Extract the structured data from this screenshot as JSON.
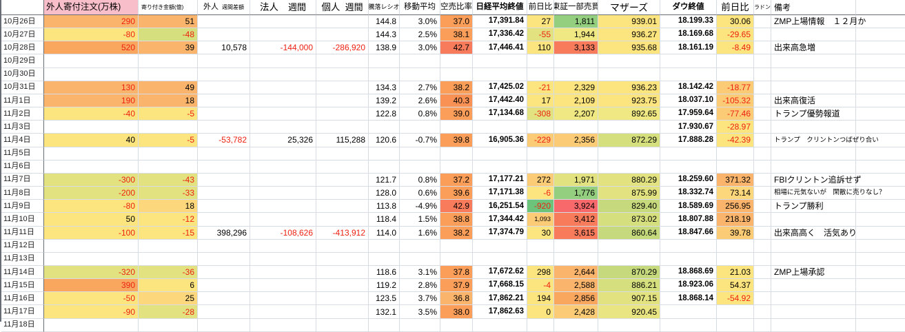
{
  "palette": {
    "pink": "#f8bfca",
    "y": "#fce47e",
    "yo": "#fcd77b",
    "po": "#fccb76",
    "o": "#fbb46b",
    "o2": "#f9a75f",
    "or1": "#fa9e5a",
    "or2": "#f99154",
    "ro": "#f87b5c",
    "red": "#f8696b",
    "pyg": "#f0e882",
    "yg": "#e2e380",
    "yg2": "#d5df7e",
    "yg3": "#c6da7d",
    "yg4": "#eae583",
    "g": "#93cf7e",
    "g2": "#6cc47b",
    "font_red": "#ee2112",
    "grid_line": "#d7dbe3",
    "heavy_line": "#676c75"
  },
  "header": {
    "cols": [
      {
        "id": "date",
        "label": ""
      },
      {
        "id": "foreign-opening-order",
        "label": "外人寄付注文(万株)",
        "bg": "pink"
      },
      {
        "id": "opening-amount",
        "label": "寄り付き金額(億)"
      },
      {
        "id": "foreign-weekly",
        "label": "外人",
        "sub": "週間差額"
      },
      {
        "id": "corporate-weekly",
        "label": "法人",
        "sub": "週間"
      },
      {
        "id": "individual-weekly",
        "label": "個人",
        "sub": "週間"
      },
      {
        "id": "advance-decline-ratio",
        "label": "騰落レシオ"
      },
      {
        "id": "moving-average",
        "label": "移動平均"
      },
      {
        "id": "short-sell-ratio",
        "label": "空売比率"
      },
      {
        "id": "nikkei-close",
        "label": "日経平均終値"
      },
      {
        "id": "nikkei-change",
        "label": "前日比"
      },
      {
        "id": "tse1-trading-value",
        "label": "東証一部売買"
      },
      {
        "id": "mothers-index",
        "label": "マザーズ"
      },
      {
        "id": "dow-close",
        "label": "ダウ終値"
      },
      {
        "id": "dow-change",
        "label": "前日比"
      },
      {
        "id": "radon",
        "label": "ラドン"
      },
      {
        "id": "remarks",
        "label": "備考"
      },
      {
        "id": "blank",
        "label": ""
      }
    ]
  },
  "rows": [
    {
      "date": "10月26日",
      "cells": [
        [
          "290",
          "o",
          "r"
        ],
        [
          "51",
          "o"
        ],
        null,
        null,
        null,
        [
          "144.8"
        ],
        [
          "3.0%"
        ],
        [
          "37.0",
          "or1"
        ],
        [
          "17,391.84"
        ],
        [
          "27",
          "y"
        ],
        [
          "1,811",
          "g"
        ],
        [
          "939.01",
          "y"
        ],
        [
          "18.199.33"
        ],
        [
          "30.06",
          "y"
        ],
        null,
        [
          "ZMP上場情報　１２月か"
        ]
      ]
    },
    {
      "date": "10月27日",
      "cells": [
        [
          "-80",
          "y",
          "r"
        ],
        [
          "-48",
          "yg2",
          "r"
        ],
        null,
        null,
        null,
        [
          "144.3"
        ],
        [
          "2.5%"
        ],
        [
          "38.1",
          "or1"
        ],
        [
          "17,336.42"
        ],
        [
          "-55",
          "yg",
          "r"
        ],
        [
          "1,944",
          "pyg"
        ],
        [
          "936.27",
          "y"
        ],
        [
          "18.169.68"
        ],
        [
          "-29.65",
          "y",
          "r"
        ],
        null,
        null
      ]
    },
    {
      "date": "10月28日",
      "cells": [
        [
          "520",
          "o2",
          "r"
        ],
        [
          "39",
          "o"
        ],
        [
          "10,578"
        ],
        [
          "-144,000",
          null,
          "r"
        ],
        [
          "-286,920",
          null,
          "r"
        ],
        [
          "138.9"
        ],
        [
          "3.0%"
        ],
        [
          "42.7",
          "ro"
        ],
        [
          "17,446.41"
        ],
        [
          "110",
          "y"
        ],
        [
          "3,133",
          "ro"
        ],
        [
          "935.68",
          "y"
        ],
        [
          "18.161.19"
        ],
        [
          "-8.49",
          "y",
          "r"
        ],
        null,
        [
          "出来高急増"
        ]
      ]
    },
    {
      "date": "10月29日",
      "cells": []
    },
    {
      "date": "10月30日",
      "cells": []
    },
    {
      "date": "10月31日",
      "cells": [
        [
          "130",
          "o",
          "r"
        ],
        [
          "49",
          "o"
        ],
        null,
        null,
        null,
        [
          "134.3"
        ],
        [
          "2.7%"
        ],
        [
          "38.2",
          "or1"
        ],
        [
          "17,425.02"
        ],
        [
          "-21",
          "y",
          "r"
        ],
        [
          "2,329",
          "y"
        ],
        [
          "936.23",
          "y"
        ],
        [
          "18.142.42"
        ],
        [
          "-18.77",
          "po",
          "r"
        ],
        null,
        null
      ]
    },
    {
      "date": "11月1日",
      "cells": [
        [
          "190",
          "o",
          "r"
        ],
        [
          "18",
          "o"
        ],
        null,
        null,
        null,
        [
          "139.2"
        ],
        [
          "2.6%"
        ],
        [
          "40.3",
          "or2"
        ],
        [
          "17,442.40"
        ],
        [
          "17",
          "y"
        ],
        [
          "2,109",
          "y"
        ],
        [
          "923.75",
          "y"
        ],
        [
          "18.037.10"
        ],
        [
          "-105.32",
          "po",
          "r"
        ],
        null,
        [
          "出来高復活"
        ]
      ]
    },
    {
      "date": "11月2日",
      "cells": [
        [
          "-40",
          "y",
          "r"
        ],
        [
          "-5",
          "y",
          "r"
        ],
        null,
        null,
        null,
        [
          "122.8"
        ],
        [
          "0.8%"
        ],
        [
          "39.0",
          "or1"
        ],
        [
          "17,134.68"
        ],
        [
          "-308",
          "yg",
          "r"
        ],
        [
          "2,207",
          "pyg"
        ],
        [
          "892.65",
          "pyg"
        ],
        [
          "17.959.64"
        ],
        [
          "-77.46",
          "po",
          "r"
        ],
        null,
        [
          "トランプ優勢報道"
        ]
      ]
    },
    {
      "date": "11月3日",
      "cells": [
        null,
        null,
        null,
        null,
        null,
        null,
        null,
        null,
        null,
        null,
        null,
        null,
        [
          "17.930.67"
        ],
        [
          "-28.97",
          "y",
          "r"
        ],
        null,
        null
      ]
    },
    {
      "date": "11月4日",
      "cells": [
        [
          "40",
          "y"
        ],
        [
          "-5",
          "y",
          "r"
        ],
        [
          "-53,782",
          null,
          "r"
        ],
        [
          "25,326"
        ],
        [
          "115,288"
        ],
        [
          "120.6"
        ],
        [
          "-0.7%"
        ],
        [
          "39.8",
          "or1"
        ],
        [
          "16,905.36"
        ],
        [
          "-229",
          "po",
          "r"
        ],
        [
          "2,356",
          "po"
        ],
        [
          "872.29",
          "yg2"
        ],
        [
          "17.888.28"
        ],
        [
          "-42.39",
          "y",
          "r"
        ],
        null,
        [
          "トランプ　クリントンつばぜり合い",
          null,
          null,
          "s"
        ]
      ]
    },
    {
      "date": "11月5日",
      "cells": []
    },
    {
      "date": "11月6日",
      "cells": []
    },
    {
      "date": "11月7日",
      "cells": [
        [
          "-300",
          "yg",
          "r"
        ],
        [
          "-43",
          "yg",
          "r"
        ],
        null,
        null,
        null,
        [
          "121.7"
        ],
        [
          "0.8%"
        ],
        [
          "37.2",
          "or1"
        ],
        [
          "17,177.21"
        ],
        [
          "272",
          "po"
        ],
        [
          "1,971",
          "yg"
        ],
        [
          "880.29",
          "yg"
        ],
        [
          "18.259.60"
        ],
        [
          "371.32",
          "o"
        ],
        null,
        [
          "FBIクリントン追訴せず"
        ]
      ]
    },
    {
      "date": "11月8日",
      "cells": [
        [
          "-200",
          "yg",
          "r"
        ],
        [
          "-33",
          "yg",
          "r"
        ],
        null,
        null,
        null,
        [
          "128.0"
        ],
        [
          "0.6%"
        ],
        [
          "39.6",
          "or1"
        ],
        [
          "17,171.38"
        ],
        [
          "-6",
          "y",
          "r"
        ],
        [
          "1,776",
          "g"
        ],
        [
          "875.99",
          "yg"
        ],
        [
          "18.332.74"
        ],
        [
          "73.14",
          "yo"
        ],
        null,
        [
          "相場に元気ないが　閑散に売りなし？",
          null,
          null,
          "s"
        ]
      ]
    },
    {
      "date": "11月9日",
      "cells": [
        [
          "-80",
          "y",
          "r"
        ],
        [
          "18",
          "yo"
        ],
        null,
        null,
        null,
        [
          "113.8"
        ],
        [
          "-4.9%"
        ],
        [
          "42.9",
          "ro"
        ],
        [
          "16,251.54"
        ],
        [
          "-920",
          "g2",
          "r"
        ],
        [
          "3,924",
          "red"
        ],
        [
          "829.40",
          "yg3"
        ],
        [
          "18.589.69"
        ],
        [
          "256.95",
          "o"
        ],
        null,
        [
          "トランプ勝利"
        ]
      ]
    },
    {
      "date": "11月10日",
      "cells": [
        [
          "50",
          "y"
        ],
        [
          "-12",
          "y",
          "r"
        ],
        null,
        null,
        null,
        [
          "118.4"
        ],
        [
          "1.5%"
        ],
        [
          "38.8",
          "or1"
        ],
        [
          "17,344.42"
        ],
        [
          "1,093",
          "po",
          null,
          "s"
        ],
        [
          "3,412",
          "ro"
        ],
        [
          "873.02",
          "yg2"
        ],
        [
          "18.807.88"
        ],
        [
          "218.19",
          "o"
        ],
        null,
        null
      ]
    },
    {
      "date": "11月11日",
      "cells": [
        [
          "-100",
          "y",
          "r"
        ],
        [
          "-15",
          "y",
          "r"
        ],
        [
          "398,296"
        ],
        [
          "-108,626",
          null,
          "r"
        ],
        [
          "-413,912",
          null,
          "r"
        ],
        [
          "114.0"
        ],
        [
          "1.6%"
        ],
        [
          "38.2",
          "or1"
        ],
        [
          "17,374.79"
        ],
        [
          "30",
          "y"
        ],
        [
          "3,615",
          "ro"
        ],
        [
          "860.64",
          "yg3"
        ],
        [
          "18.847.66"
        ],
        [
          "39.78",
          "po"
        ],
        null,
        [
          "出来高高く　活気あり"
        ]
      ]
    },
    {
      "date": "11月12日",
      "cells": []
    },
    {
      "date": "11月13日",
      "cells": []
    },
    {
      "date": "11月14日",
      "cells": [
        [
          "-320",
          "yg",
          "r"
        ],
        [
          "-36",
          "yg",
          "r"
        ],
        null,
        null,
        null,
        [
          "118.6"
        ],
        [
          "3.1%"
        ],
        [
          "37.8",
          "or1"
        ],
        [
          "17,672.62"
        ],
        [
          "298",
          "y"
        ],
        [
          "2,644",
          "o"
        ],
        [
          "870.29",
          "yg3"
        ],
        [
          "18.868.69"
        ],
        [
          "21.03",
          "y"
        ],
        null,
        [
          "ZMP上場承認"
        ]
      ]
    },
    {
      "date": "11月15日",
      "cells": [
        [
          "390",
          "o2",
          "r"
        ],
        [
          "6",
          "y"
        ],
        null,
        null,
        null,
        [
          "119.2"
        ],
        [
          "2.8%"
        ],
        [
          "37.9",
          "or1"
        ],
        [
          "17,668.15"
        ],
        [
          "-4",
          "y",
          "r"
        ],
        [
          "2,588",
          "o"
        ],
        [
          "886.21",
          "yg2"
        ],
        [
          "18.923.06"
        ],
        [
          "54.37",
          "y"
        ],
        null,
        null
      ]
    },
    {
      "date": "11月16日",
      "cells": [
        [
          "-50",
          "y",
          "r"
        ],
        [
          "25",
          "yo"
        ],
        null,
        null,
        null,
        [
          "123.5"
        ],
        [
          "3.7%"
        ],
        [
          "36.8",
          "o"
        ],
        [
          "17,862.21"
        ],
        [
          "194",
          "y"
        ],
        [
          "2,856",
          "o2"
        ],
        [
          "907.15",
          "yg"
        ],
        [
          "18.868.14"
        ],
        [
          "-54.92",
          "y",
          "r"
        ],
        null,
        null
      ]
    },
    {
      "date": "11月17日",
      "cells": [
        [
          "-90",
          "y",
          "r"
        ],
        [
          "-28",
          "yg",
          "r"
        ],
        null,
        null,
        null,
        [
          "132.1"
        ],
        [
          "3.5%"
        ],
        [
          "38.0",
          "or1"
        ],
        [
          "17,862.63"
        ],
        [
          "0",
          "y"
        ],
        [
          "2,428",
          "po"
        ],
        [
          "920.45",
          "yg4"
        ],
        null,
        null,
        null,
        null
      ]
    },
    {
      "date": "11月18日",
      "cells": []
    }
  ]
}
